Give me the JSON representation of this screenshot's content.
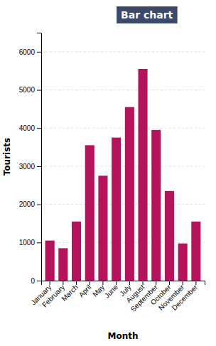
{
  "chart_data": {
    "type": "bar",
    "title": "Bar chart",
    "categories": [
      "January",
      "February",
      "March",
      "April",
      "May",
      "June",
      "July",
      "August",
      "September",
      "October",
      "November",
      "December"
    ],
    "values": [
      1050,
      850,
      1550,
      3550,
      2750,
      3750,
      4550,
      5550,
      3950,
      2350,
      975,
      1550
    ],
    "color": "#b5135b",
    "xlabel": "Month",
    "ylabel": "Tourists",
    "ylim": [
      0,
      6500
    ],
    "yticks": [
      0,
      1000,
      2000,
      3000,
      4000,
      5000,
      6000
    ],
    "grid": true
  }
}
